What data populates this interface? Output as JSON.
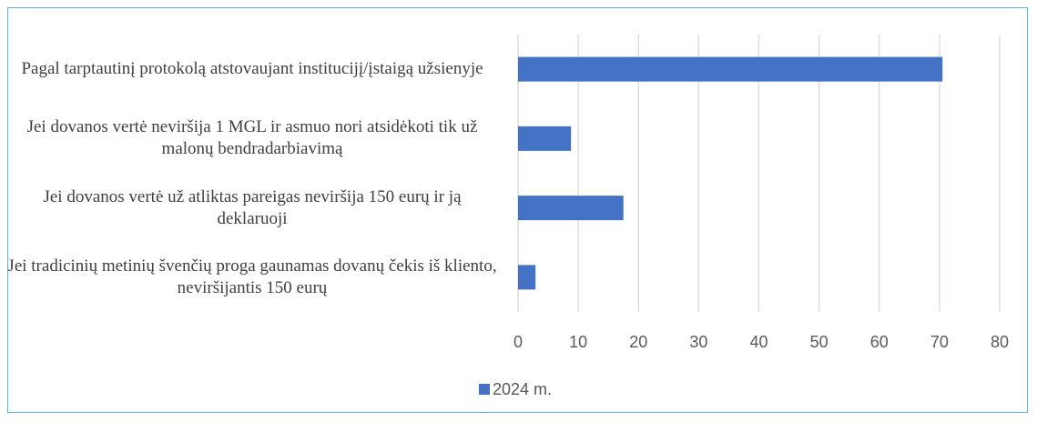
{
  "chart_data": {
    "type": "bar",
    "orientation": "horizontal",
    "categories": [
      "Pagal tarptautinį protokolą atstovaujant institucijį/įstaigą užsienyje",
      "Jei dovanos vertė neviršija 1 MGL ir asmuo nori atsidėkoti tik už malonų bendradarbiavimą",
      "Jei dovanos vertė už atliktas pareigas neviršija 150 eurų ir ją deklaruoji",
      "Jei tradicinių metinių švenčių proga gaunamas dovanų čekis iš kliento, neviršijantis 150 eurų"
    ],
    "series": [
      {
        "name": "2024 m.",
        "color": "#4472c4",
        "values": [
          70.5,
          8.8,
          17.5,
          2.9
        ]
      }
    ],
    "xlim": [
      0,
      80
    ],
    "xticks": [
      0,
      10,
      20,
      30,
      40,
      50,
      60,
      70,
      80
    ],
    "grid": true,
    "legend": "bottom"
  }
}
